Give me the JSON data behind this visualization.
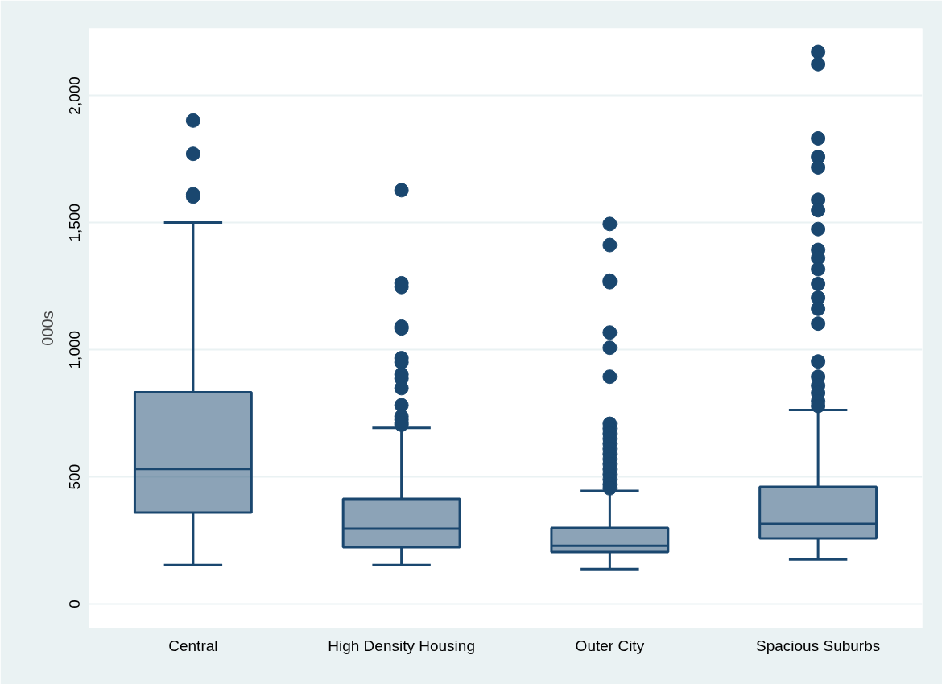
{
  "chart_data": {
    "type": "box",
    "ylabel": "000s",
    "categories": [
      "Central",
      "High Density Housing",
      "Outer City",
      "Spacious Suburbs"
    ],
    "ylim": [
      -95,
      2264
    ],
    "yticks": [
      {
        "value": 0,
        "label": "0"
      },
      {
        "value": 500,
        "label": "500"
      },
      {
        "value": 1000,
        "label": "1,000"
      },
      {
        "value": 1500,
        "label": "1,500"
      },
      {
        "value": 2000,
        "label": "2,000"
      }
    ],
    "grid": "y",
    "marker": "circle",
    "series": [
      {
        "color": "#1a476f",
        "boxes": [
          {
            "low": 153,
            "q1": 359,
            "median": 531,
            "q3": 833,
            "high": 1501,
            "outliers": [
              1902,
              1771,
              1612,
              1603
            ]
          },
          {
            "low": 153,
            "q1": 223,
            "median": 296,
            "q3": 413,
            "high": 693,
            "outliers": [
              1628,
              1262,
              1247,
              1091,
              1084,
              967,
              951,
              903,
              887,
              849,
              782,
              738,
              725,
              712,
              705
            ]
          },
          {
            "low": 137,
            "q1": 204,
            "median": 229,
            "q3": 299,
            "high": 445,
            "outliers": [
              1495,
              1412,
              1272,
              1266,
              1068,
              1008,
              894,
              709,
              690,
              670,
              650,
              630,
              610,
              590,
              570,
              550,
              530,
              510,
              490,
              470,
              455
            ]
          },
          {
            "low": 175,
            "q1": 258,
            "median": 315,
            "q3": 461,
            "high": 763,
            "outliers": [
              2172,
              2124,
              1832,
              1759,
              1718,
              1590,
              1549,
              1475,
              1393,
              1361,
              1317,
              1259,
              1205,
              1161,
              1103,
              954,
              894,
              859,
              830,
              798,
              779
            ]
          }
        ]
      }
    ]
  }
}
